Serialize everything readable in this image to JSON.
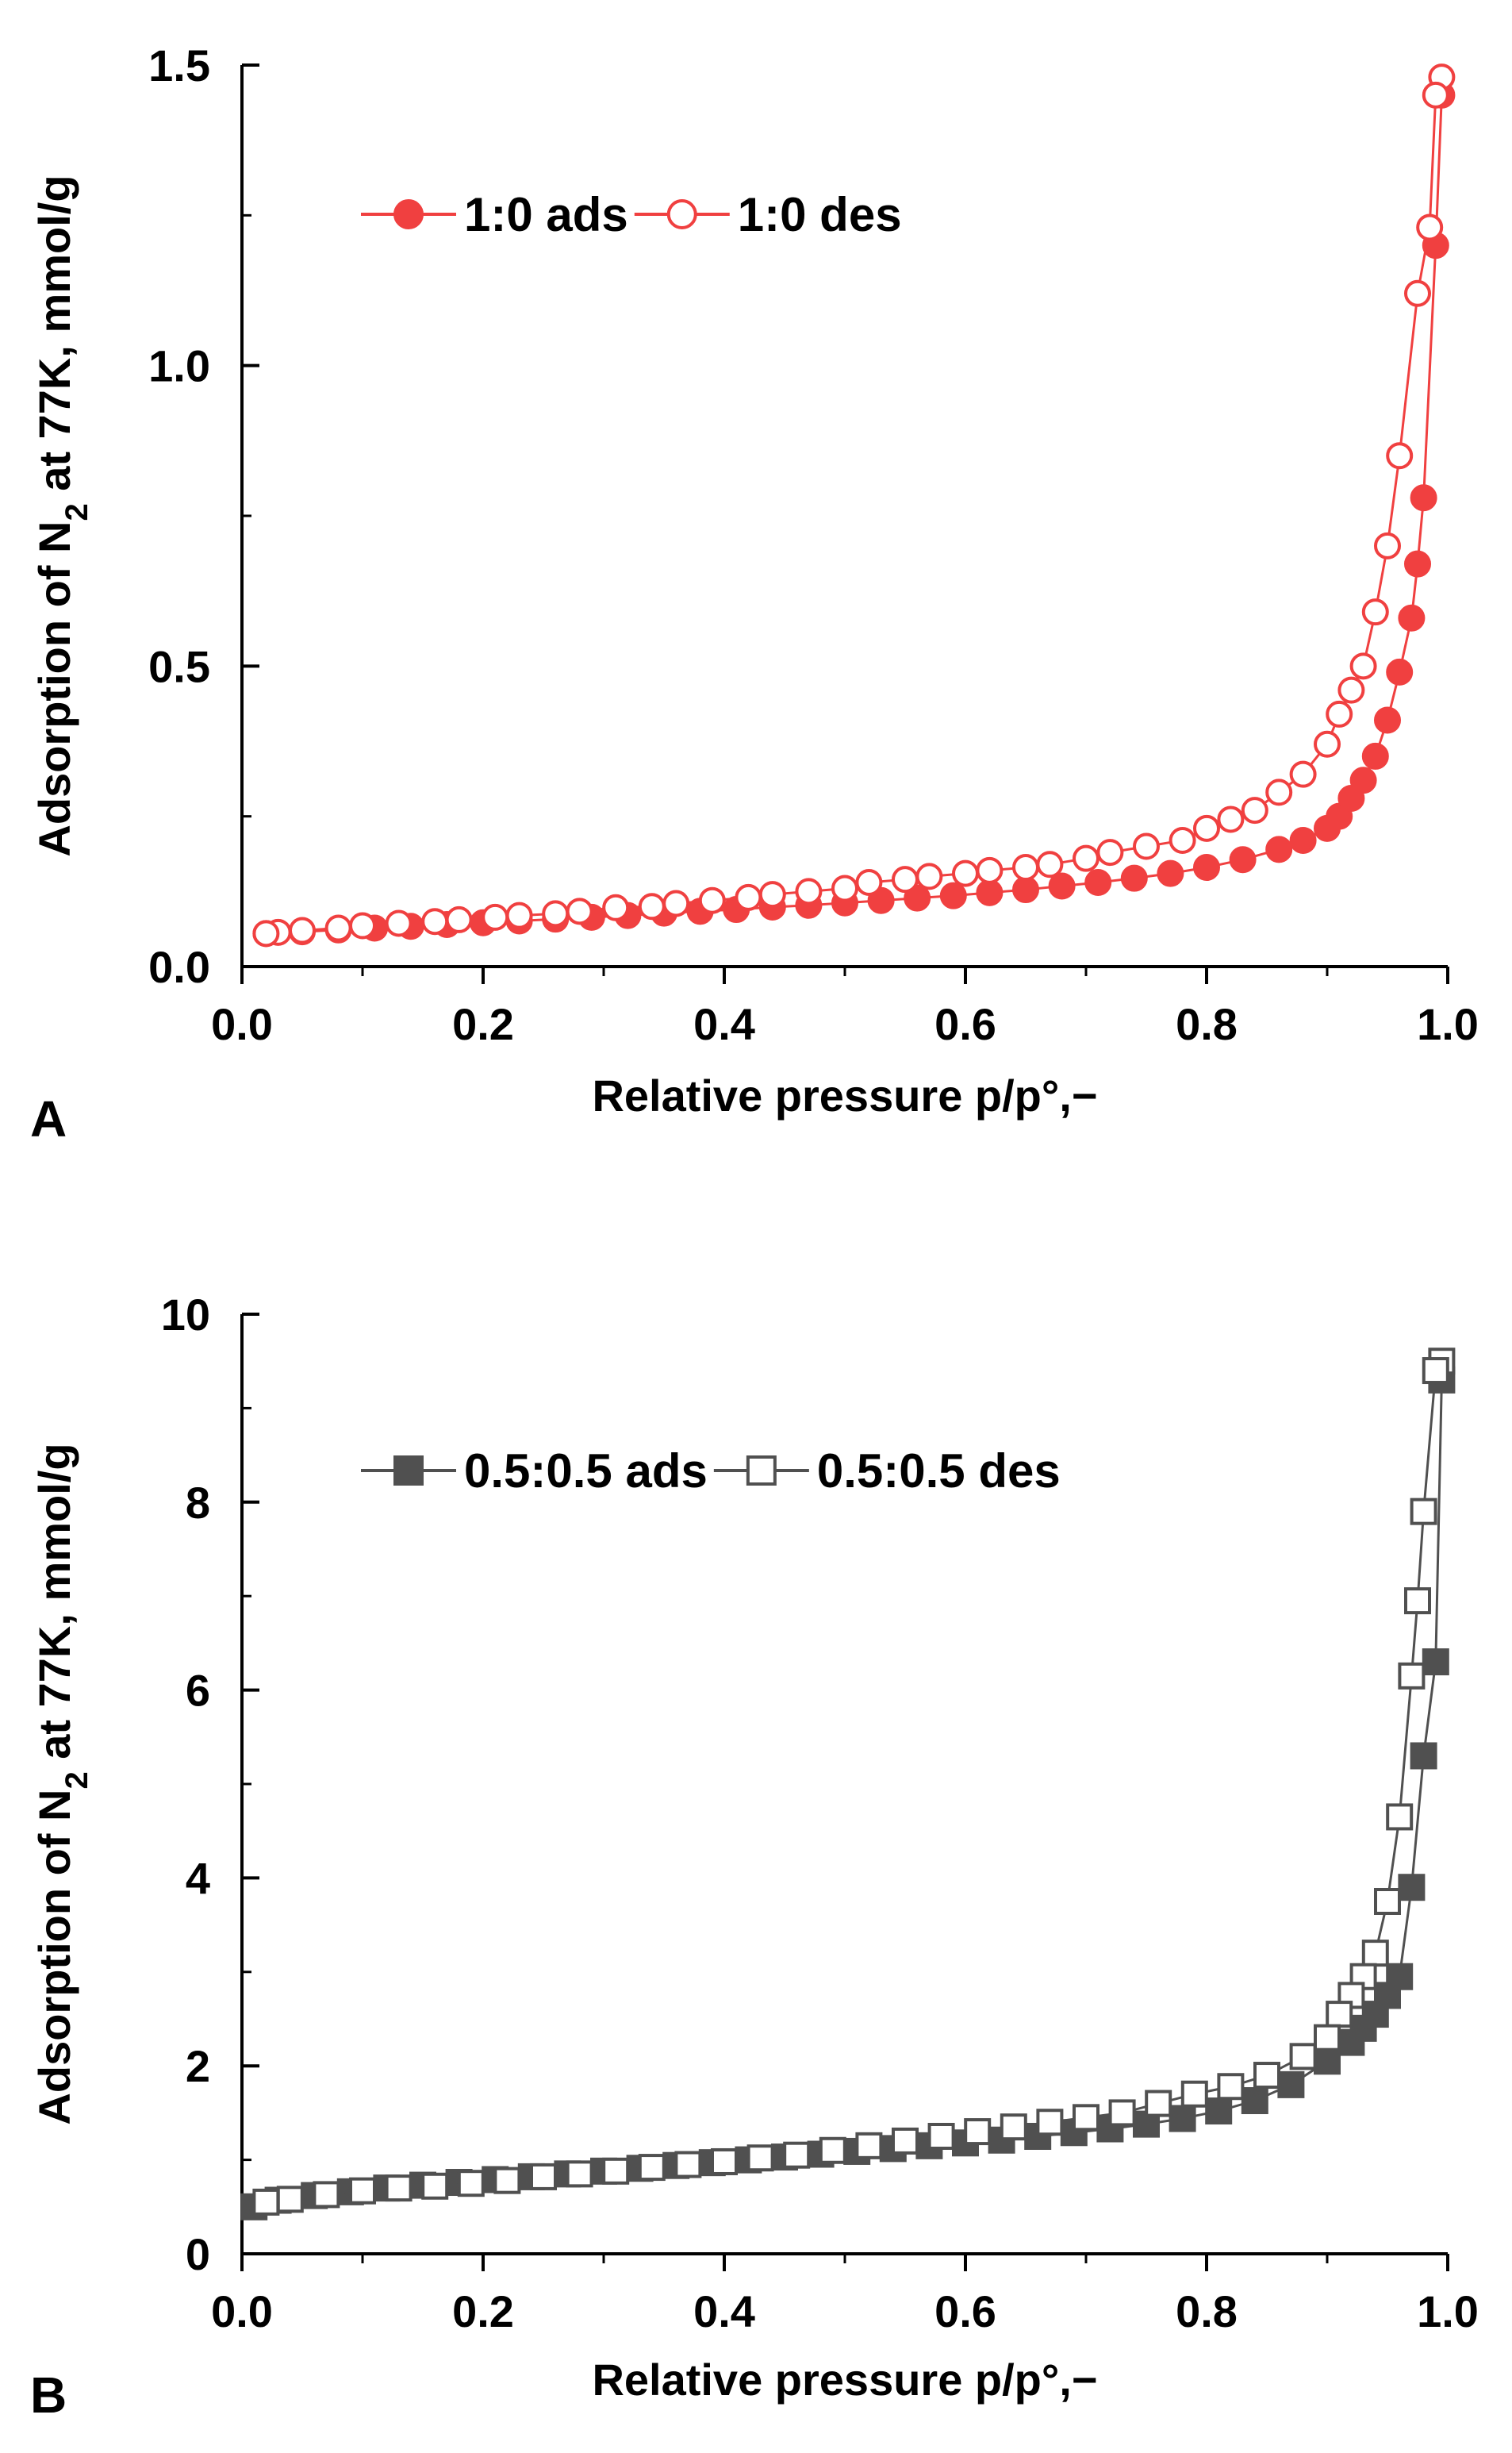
{
  "chart_data": [
    {
      "type": "scatter",
      "panel": "A",
      "xlabel": "Relative pressure p/p°,−",
      "ylabel_parts": [
        "Adsorption of N",
        "2",
        " at 77K, mmol/g"
      ],
      "xlim": [
        0.0,
        1.0
      ],
      "ylim": [
        0.0,
        1.5
      ],
      "xticks": [
        "0.0",
        "0.2",
        "0.4",
        "0.6",
        "0.8",
        "1.0"
      ],
      "yticks": [
        "0.0",
        "0.5",
        "1.0",
        "1.5"
      ],
      "xtick_values": [
        0.0,
        0.2,
        0.4,
        0.6,
        0.8,
        1.0
      ],
      "ytick_values": [
        0.0,
        0.5,
        1.0,
        1.5
      ],
      "legend_position": "top-left",
      "series": [
        {
          "name": "1:0 ads",
          "marker": "circle",
          "filled": true,
          "color": "#f04040",
          "x": [
            0.02,
            0.05,
            0.08,
            0.11,
            0.14,
            0.17,
            0.2,
            0.23,
            0.26,
            0.29,
            0.32,
            0.35,
            0.38,
            0.41,
            0.44,
            0.47,
            0.5,
            0.53,
            0.56,
            0.59,
            0.62,
            0.65,
            0.68,
            0.71,
            0.74,
            0.77,
            0.8,
            0.83,
            0.86,
            0.88,
            0.9,
            0.91,
            0.92,
            0.93,
            0.94,
            0.95,
            0.96,
            0.97,
            0.975,
            0.98,
            0.99,
            0.995
          ],
          "y": [
            0.055,
            0.058,
            0.061,
            0.064,
            0.067,
            0.07,
            0.073,
            0.076,
            0.079,
            0.082,
            0.085,
            0.089,
            0.092,
            0.095,
            0.099,
            0.102,
            0.106,
            0.11,
            0.114,
            0.118,
            0.123,
            0.128,
            0.134,
            0.14,
            0.147,
            0.155,
            0.165,
            0.178,
            0.195,
            0.21,
            0.23,
            0.25,
            0.28,
            0.31,
            0.35,
            0.41,
            0.49,
            0.58,
            0.67,
            0.78,
            1.2,
            1.45
          ]
        },
        {
          "name": "1:0 des",
          "marker": "circle",
          "filled": false,
          "color": "#f04040",
          "x": [
            0.995,
            0.99,
            0.985,
            0.975,
            0.96,
            0.95,
            0.94,
            0.93,
            0.92,
            0.91,
            0.9,
            0.88,
            0.86,
            0.84,
            0.82,
            0.8,
            0.78,
            0.75,
            0.72,
            0.7,
            0.67,
            0.65,
            0.62,
            0.6,
            0.57,
            0.55,
            0.52,
            0.5,
            0.47,
            0.44,
            0.42,
            0.39,
            0.36,
            0.34,
            0.31,
            0.28,
            0.26,
            0.23,
            0.21,
            0.18,
            0.16,
            0.13,
            0.1,
            0.08,
            0.05,
            0.03,
            0.02
          ],
          "y": [
            1.48,
            1.45,
            1.23,
            1.12,
            0.85,
            0.7,
            0.59,
            0.5,
            0.46,
            0.42,
            0.37,
            0.32,
            0.29,
            0.26,
            0.245,
            0.23,
            0.21,
            0.2,
            0.19,
            0.18,
            0.17,
            0.165,
            0.16,
            0.155,
            0.15,
            0.145,
            0.14,
            0.13,
            0.125,
            0.12,
            0.115,
            0.11,
            0.105,
            0.1,
            0.098,
            0.092,
            0.088,
            0.085,
            0.082,
            0.078,
            0.075,
            0.072,
            0.068,
            0.064,
            0.06,
            0.057,
            0.055
          ]
        }
      ]
    },
    {
      "type": "scatter",
      "panel": "B",
      "xlabel": "Relative pressure p/p°,−",
      "ylabel_parts": [
        "Adsorption of N",
        "2",
        " at 77K, mmol/g"
      ],
      "xlim": [
        0.0,
        1.0
      ],
      "ylim": [
        0,
        10
      ],
      "xticks": [
        "0.0",
        "0.2",
        "0.4",
        "0.6",
        "0.8",
        "1.0"
      ],
      "yticks": [
        "0",
        "2",
        "4",
        "6",
        "8",
        "10"
      ],
      "xtick_values": [
        0.0,
        0.2,
        0.4,
        0.6,
        0.8,
        1.0
      ],
      "ytick_values": [
        0,
        2,
        4,
        6,
        8,
        10
      ],
      "legend_position": "top-left",
      "series": [
        {
          "name": "0.5:0.5 ads",
          "marker": "square",
          "filled": true,
          "color": "#505050",
          "x": [
            0.01,
            0.03,
            0.06,
            0.09,
            0.12,
            0.15,
            0.18,
            0.21,
            0.24,
            0.27,
            0.3,
            0.33,
            0.36,
            0.39,
            0.42,
            0.45,
            0.48,
            0.51,
            0.54,
            0.57,
            0.6,
            0.63,
            0.66,
            0.69,
            0.72,
            0.75,
            0.78,
            0.81,
            0.84,
            0.87,
            0.9,
            0.92,
            0.93,
            0.94,
            0.95,
            0.96,
            0.97,
            0.98,
            0.99,
            0.995
          ],
          "y": [
            0.5,
            0.57,
            0.62,
            0.66,
            0.7,
            0.73,
            0.76,
            0.79,
            0.82,
            0.85,
            0.88,
            0.91,
            0.94,
            0.97,
            1.0,
            1.03,
            1.06,
            1.09,
            1.12,
            1.15,
            1.18,
            1.21,
            1.25,
            1.29,
            1.33,
            1.38,
            1.44,
            1.52,
            1.63,
            1.8,
            2.05,
            2.25,
            2.4,
            2.55,
            2.75,
            2.95,
            3.9,
            5.3,
            6.3,
            9.3
          ]
        },
        {
          "name": "0.5:0.5 des",
          "marker": "square",
          "filled": false,
          "color": "#505050",
          "x": [
            0.995,
            0.99,
            0.98,
            0.975,
            0.97,
            0.96,
            0.95,
            0.94,
            0.93,
            0.92,
            0.91,
            0.9,
            0.88,
            0.85,
            0.82,
            0.79,
            0.76,
            0.73,
            0.7,
            0.67,
            0.64,
            0.61,
            0.58,
            0.55,
            0.52,
            0.49,
            0.46,
            0.43,
            0.4,
            0.37,
            0.34,
            0.31,
            0.28,
            0.25,
            0.22,
            0.19,
            0.16,
            0.13,
            0.1,
            0.07,
            0.04,
            0.02
          ],
          "y": [
            9.5,
            9.4,
            7.9,
            6.95,
            6.15,
            4.65,
            3.75,
            3.2,
            2.95,
            2.75,
            2.55,
            2.3,
            2.1,
            1.9,
            1.78,
            1.7,
            1.6,
            1.5,
            1.45,
            1.4,
            1.35,
            1.3,
            1.25,
            1.2,
            1.15,
            1.1,
            1.05,
            1.02,
            0.98,
            0.95,
            0.92,
            0.88,
            0.85,
            0.82,
            0.78,
            0.75,
            0.72,
            0.7,
            0.67,
            0.63,
            0.58,
            0.55
          ]
        }
      ]
    }
  ]
}
